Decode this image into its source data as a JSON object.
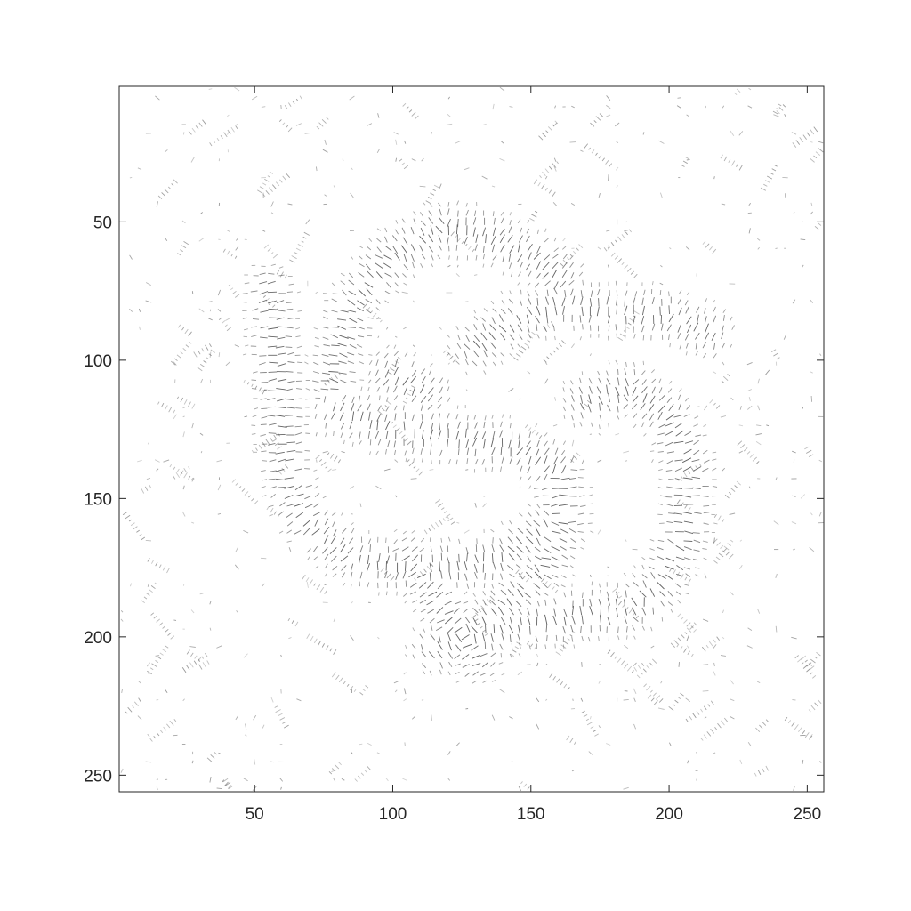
{
  "chart_data": {
    "type": "quiver",
    "title": "",
    "xlabel": "",
    "ylabel": "",
    "xlim": [
      1,
      256
    ],
    "ylim": [
      1,
      256
    ],
    "y_reversed": true,
    "grid": false,
    "legend": "none",
    "x_ticks": [
      50,
      100,
      150,
      200,
      250
    ],
    "y_ticks": [
      50,
      100,
      150,
      200,
      250
    ],
    "x_tick_labels": [
      "50",
      "100",
      "150",
      "200",
      "250"
    ],
    "y_tick_labels": [
      "50",
      "100",
      "150",
      "200",
      "250"
    ],
    "arrow_color": "#555555",
    "strokes": [
      {
        "name": "upper-arc",
        "points": [
          [
            78,
            108
          ],
          [
            85,
            80
          ],
          [
            100,
            62
          ],
          [
            118,
            52
          ],
          [
            135,
            55
          ],
          [
            150,
            62
          ],
          [
            160,
            70
          ]
        ]
      },
      {
        "name": "top-right-branch",
        "points": [
          [
            130,
            95
          ],
          [
            145,
            85
          ],
          [
            160,
            80
          ],
          [
            180,
            82
          ],
          [
            200,
            84
          ],
          [
            215,
            90
          ]
        ]
      },
      {
        "name": "left-curve",
        "points": [
          [
            55,
            75
          ],
          [
            58,
            100
          ],
          [
            60,
            125
          ],
          [
            62,
            145
          ],
          [
            70,
            160
          ],
          [
            85,
            172
          ],
          [
            110,
            176
          ],
          [
            140,
            172
          ],
          [
            155,
            160
          ]
        ]
      },
      {
        "name": "middle-stroke",
        "points": [
          [
            80,
            118
          ],
          [
            100,
            125
          ],
          [
            125,
            128
          ],
          [
            145,
            132
          ],
          [
            160,
            140
          ],
          [
            162,
            158
          ],
          [
            155,
            175
          ],
          [
            140,
            190
          ],
          [
            125,
            200
          ],
          [
            115,
            205
          ]
        ]
      },
      {
        "name": "lower-diagonal",
        "points": [
          [
            105,
            172
          ],
          [
            115,
            185
          ],
          [
            125,
            200
          ],
          [
            130,
            208
          ]
        ]
      },
      {
        "name": "lower-branch",
        "points": [
          [
            130,
            200
          ],
          [
            150,
            195
          ],
          [
            170,
            192
          ],
          [
            190,
            188
          ]
        ]
      },
      {
        "name": "right-loop",
        "points": [
          [
            170,
            115
          ],
          [
            185,
            110
          ],
          [
            200,
            120
          ],
          [
            208,
            140
          ],
          [
            205,
            165
          ],
          [
            198,
            180
          ],
          [
            185,
            190
          ],
          [
            165,
            192
          ]
        ]
      },
      {
        "name": "center-tick",
        "points": [
          [
            100,
            105
          ],
          [
            112,
            112
          ]
        ]
      }
    ]
  }
}
